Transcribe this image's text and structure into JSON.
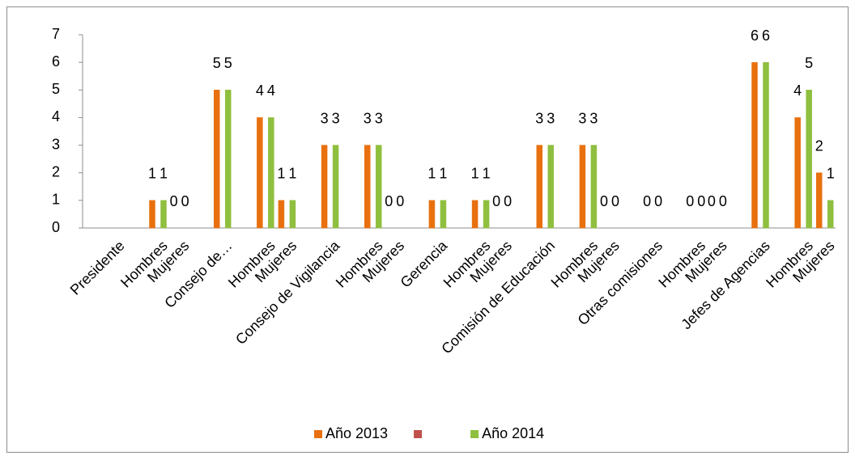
{
  "chart_data": {
    "type": "bar",
    "categories": [
      null,
      "Presidente",
      null,
      "Hombres",
      "Mujeres",
      null,
      "Consejo de…",
      null,
      "Hombres",
      "Mujeres",
      null,
      "Consejo de Vigilancia",
      null,
      "Hombres",
      "Mujeres",
      null,
      "Gerencia",
      null,
      "Hombres",
      "Mujeres",
      null,
      "Comisión de Educación",
      null,
      "Hombres",
      "Mujeres",
      null,
      "Otras comisiones",
      null,
      "Hombres",
      "Mujeres",
      null,
      "Jefes de Agencias",
      null,
      "Hombres",
      "Mujeres"
    ],
    "series": [
      {
        "name": "Año 2013",
        "color": "#e8700e",
        "values": [
          null,
          null,
          null,
          1,
          0,
          null,
          5,
          null,
          4,
          1,
          null,
          3,
          null,
          3,
          0,
          null,
          1,
          null,
          1,
          0,
          null,
          3,
          null,
          3,
          0,
          null,
          0,
          null,
          0,
          0,
          null,
          6,
          null,
          4,
          2
        ]
      },
      {
        "color": "#c0504d",
        "values": [
          null,
          null,
          null,
          null,
          null,
          null,
          null,
          null,
          null,
          null,
          null,
          null,
          null,
          null,
          null,
          null,
          null,
          null,
          null,
          null,
          null,
          null,
          null,
          null,
          null,
          null,
          null,
          null,
          null,
          null,
          null,
          null,
          null,
          null,
          null
        ]
      },
      {
        "name": "Año 2014",
        "color": "#8fbf3f",
        "values": [
          null,
          null,
          null,
          1,
          0,
          null,
          5,
          null,
          4,
          1,
          null,
          3,
          null,
          3,
          0,
          null,
          1,
          null,
          1,
          0,
          null,
          3,
          null,
          3,
          0,
          null,
          0,
          null,
          0,
          0,
          null,
          6,
          null,
          5,
          1
        ]
      }
    ],
    "ylim": [
      0,
      7
    ],
    "yticks": [
      0,
      1,
      2,
      3,
      4,
      5,
      6,
      7
    ],
    "grid": false,
    "legend": "bottom"
  }
}
